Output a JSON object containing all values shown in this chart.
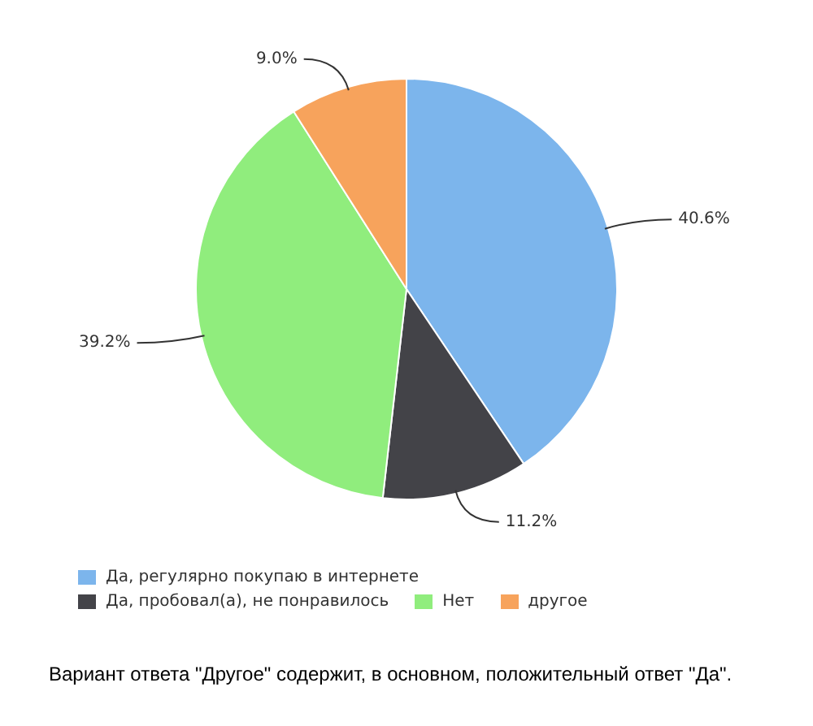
{
  "chart_data": {
    "type": "pie",
    "categories": [
      "Да, регулярно покупаю в интернете",
      "Да, пробовал(а), не понравилось",
      "Нет",
      "другое"
    ],
    "values": [
      40.6,
      11.2,
      39.2,
      9.0
    ],
    "colors": [
      "#7cb5ec",
      "#434348",
      "#90ed7d",
      "#f7a35c"
    ],
    "value_labels": [
      "40.6%",
      "11.2%",
      "39.2%",
      "9.0%"
    ],
    "legend": "bottom left",
    "annotations": [
      "Вариант ответа \"Другое\" содержит, в основном, положительный ответ \"Да\"."
    ]
  }
}
